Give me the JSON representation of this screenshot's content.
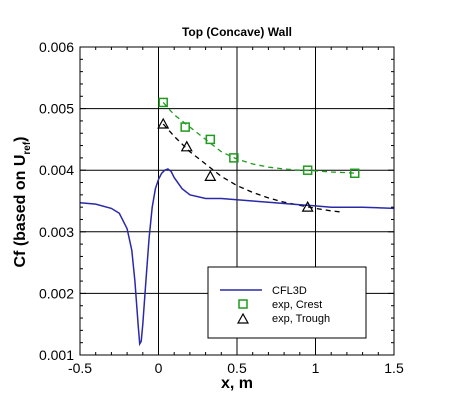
{
  "chart_data": {
    "type": "line",
    "title": "Top (Concave) Wall",
    "xlabel": "x, m",
    "ylabel": "Cf (based on U",
    "ylabel_sub": "ref",
    "ylabel_close": ")",
    "xlim": [
      -0.5,
      1.5
    ],
    "ylim": [
      0.001,
      0.006
    ],
    "xticks": [
      -0.5,
      0,
      0.5,
      1,
      1.5
    ],
    "xtick_labels": [
      "-0.5",
      "0",
      "0.5",
      "1",
      "1.5"
    ],
    "yticks": [
      0.001,
      0.002,
      0.003,
      0.004,
      0.005,
      0.006
    ],
    "ytick_labels": [
      "0.001",
      "0.002",
      "0.003",
      "0.004",
      "0.005",
      "0.006"
    ],
    "grid": true,
    "legend_position": "lower-right",
    "series": [
      {
        "name": "CFL3D",
        "style": "solid-line",
        "color": "#2a2aa8",
        "x": [
          -0.5,
          -0.4,
          -0.3,
          -0.25,
          -0.2,
          -0.17,
          -0.15,
          -0.13,
          -0.12,
          -0.11,
          -0.1,
          -0.08,
          -0.06,
          -0.04,
          -0.02,
          0.0,
          0.02,
          0.04,
          0.06,
          0.08,
          0.1,
          0.15,
          0.2,
          0.3,
          0.4,
          0.5,
          0.6,
          0.7,
          0.8,
          0.9,
          1.0,
          1.1,
          1.2,
          1.3,
          1.4,
          1.5
        ],
        "y": [
          0.00347,
          0.00345,
          0.00338,
          0.0033,
          0.00305,
          0.0027,
          0.0022,
          0.0015,
          0.00118,
          0.00122,
          0.0015,
          0.0022,
          0.0029,
          0.0034,
          0.0037,
          0.00385,
          0.00395,
          0.004,
          0.00402,
          0.00398,
          0.00388,
          0.0037,
          0.0036,
          0.00354,
          0.00354,
          0.00352,
          0.0035,
          0.00348,
          0.00346,
          0.00344,
          0.00342,
          0.0034,
          0.0034,
          0.0034,
          0.00339,
          0.00338
        ]
      },
      {
        "name": "exp, Crest",
        "style": "square-markers",
        "color": "#1f9c1f",
        "x": [
          0.03,
          0.17,
          0.33,
          0.48,
          0.95,
          1.25
        ],
        "y": [
          0.0051,
          0.0047,
          0.0045,
          0.0042,
          0.004,
          0.00395
        ]
      },
      {
        "name": "exp, Trough",
        "style": "triangle-markers",
        "color": "#000000",
        "x": [
          0.03,
          0.18,
          0.33,
          0.95
        ],
        "y": [
          0.00475,
          0.00438,
          0.0039,
          0.0034
        ]
      },
      {
        "style": "dashed-fit",
        "color": "#1f9c1f",
        "x": [
          0.03,
          0.1,
          0.2,
          0.3,
          0.4,
          0.5,
          0.6,
          0.7,
          0.8,
          0.9,
          1.0,
          1.1,
          1.2,
          1.27
        ],
        "y": [
          0.0051,
          0.0049,
          0.0047,
          0.0045,
          0.0043,
          0.00418,
          0.0041,
          0.00405,
          0.00402,
          0.004,
          0.00399,
          0.00397,
          0.00396,
          0.00395
        ]
      },
      {
        "style": "dashed-fit",
        "color": "#000000",
        "x": [
          0.03,
          0.1,
          0.2,
          0.3,
          0.4,
          0.5,
          0.6,
          0.7,
          0.8,
          0.9,
          1.0,
          1.1,
          1.17
        ],
        "y": [
          0.00475,
          0.00455,
          0.0043,
          0.0041,
          0.0039,
          0.00375,
          0.00364,
          0.00355,
          0.00348,
          0.00343,
          0.00338,
          0.00334,
          0.00332
        ]
      }
    ]
  }
}
